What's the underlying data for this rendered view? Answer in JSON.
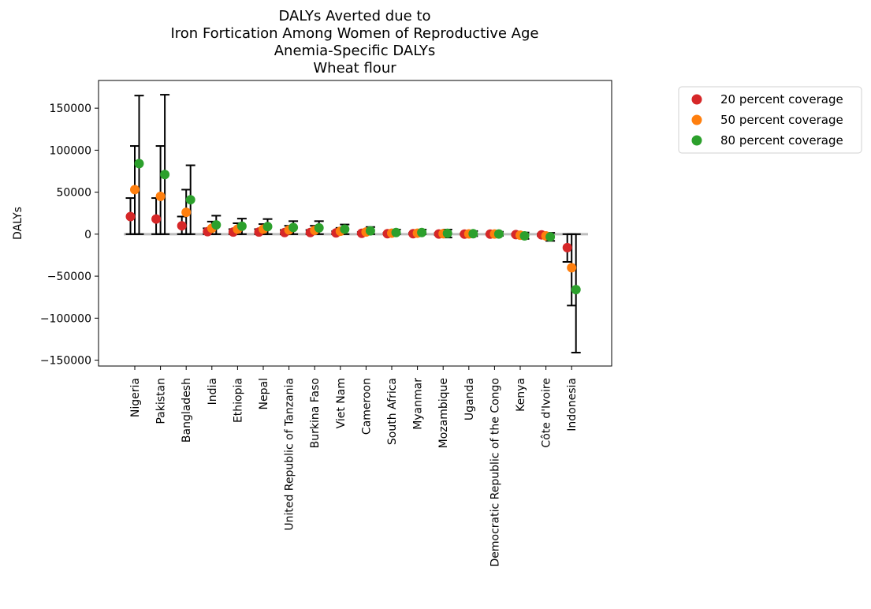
{
  "chart_data": {
    "type": "scatter",
    "title_lines": [
      "DALYs Averted due to",
      "Iron Fortication Among Women of Reproductive Age",
      "Anemia-Specific DALYs",
      "Wheat flour"
    ],
    "xlabel": "",
    "ylabel": "DALYs",
    "ylim": [
      -157000,
      183000
    ],
    "yticks": [
      150000,
      100000,
      50000,
      0,
      -50000,
      -100000,
      -150000
    ],
    "ytick_labels": [
      "150000",
      "100000",
      "50000",
      "0",
      "−50000",
      "−100000",
      "−150000"
    ],
    "categories": [
      "Nigeria",
      "Pakistan",
      "Bangladesh",
      "India",
      "Ethiopia",
      "Nepal",
      "United Republic of Tanzania",
      "Burkina Faso",
      "Viet Nam",
      "Cameroon",
      "South Africa",
      "Myanmar",
      "Mozambique",
      "Uganda",
      "Democratic Republic of the Congo",
      "Kenya",
      "Côte d'Ivoire",
      "Indonesia"
    ],
    "legend_position": "outside-right",
    "grid": false,
    "zero_line_color": "#bdbdbd",
    "series": [
      {
        "name": "20 percent coverage",
        "color": "#d62728",
        "values": [
          21000,
          18000,
          10000,
          3000,
          2500,
          2500,
          2000,
          2000,
          1500,
          1000,
          500,
          500,
          200,
          100,
          50,
          -500,
          -800,
          -16000
        ],
        "lower": [
          0,
          0,
          0,
          0,
          0,
          0,
          0,
          0,
          0,
          0,
          0,
          0,
          -1000,
          -600,
          -500,
          -1500,
          -2000,
          -33000
        ],
        "upper": [
          43000,
          43000,
          21000,
          7000,
          6000,
          6000,
          5000,
          5000,
          3500,
          2500,
          1500,
          1500,
          1500,
          900,
          700,
          500,
          400,
          0
        ]
      },
      {
        "name": "50 percent coverage",
        "color": "#ff7f0e",
        "values": [
          53000,
          45000,
          26000,
          7000,
          6000,
          6000,
          5000,
          4500,
          3500,
          2500,
          1200,
          1200,
          600,
          300,
          150,
          -1200,
          -2000,
          -40000
        ],
        "lower": [
          0,
          0,
          0,
          0,
          0,
          0,
          0,
          0,
          0,
          0,
          0,
          0,
          -2500,
          -1500,
          -1200,
          -3500,
          -5000,
          -85000
        ],
        "upper": [
          105000,
          105000,
          53000,
          15000,
          13000,
          12000,
          10000,
          10000,
          7500,
          5500,
          3500,
          3500,
          3500,
          2300,
          1800,
          1200,
          1000,
          0
        ]
      },
      {
        "name": "80 percent coverage",
        "color": "#2ca02c",
        "values": [
          84000,
          71000,
          41000,
          11000,
          9500,
          9000,
          8000,
          7500,
          6000,
          4000,
          2000,
          2000,
          1000,
          500,
          250,
          -2000,
          -3200,
          -66000
        ],
        "lower": [
          0,
          0,
          0,
          0,
          0,
          0,
          0,
          0,
          0,
          0,
          0,
          0,
          -4000,
          -2400,
          -2000,
          -5600,
          -8000,
          -141000
        ],
        "upper": [
          165000,
          166000,
          82000,
          22000,
          18500,
          18000,
          15500,
          15500,
          11500,
          8500,
          5500,
          5500,
          5500,
          3700,
          2900,
          2000,
          1600,
          0
        ]
      }
    ]
  }
}
